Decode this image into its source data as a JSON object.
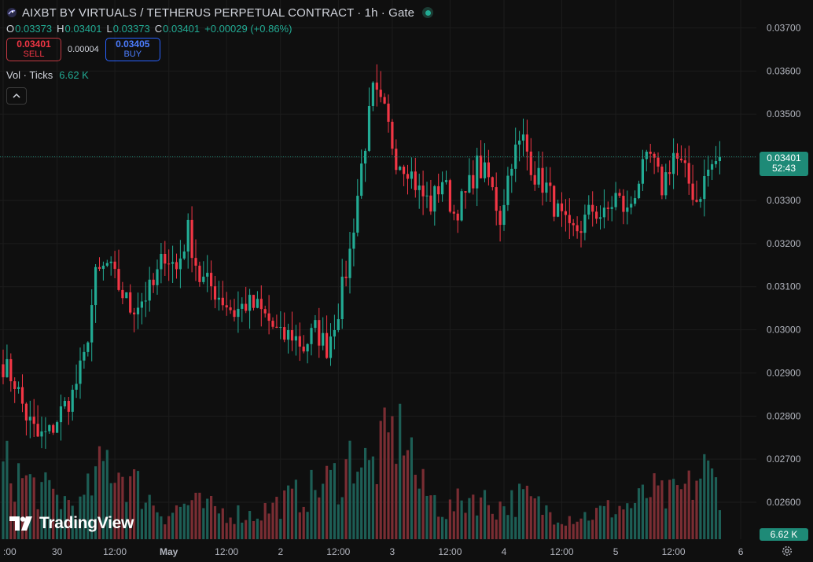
{
  "header": {
    "title": "AIXBT BY VIRTUALS / TETHERUS PERPETUAL CONTRACT · 1h · Gate",
    "symbol_icon": "galaxy-icon",
    "status_icon": "market-open-dot"
  },
  "ohlc": {
    "o_label": "O",
    "o": "0.03373",
    "h_label": "H",
    "h": "0.03401",
    "l_label": "L",
    "l": "0.03373",
    "c_label": "C",
    "c": "0.03401",
    "change": "+0.00029 (+0.86%)"
  },
  "trade": {
    "sell_price": "0.03401",
    "sell_label": "SELL",
    "spread": "0.00004",
    "buy_price": "0.03405",
    "buy_label": "BUY"
  },
  "volume_legend": {
    "label": "Vol · Ticks",
    "value": "6.62 K"
  },
  "price_axis": {
    "last_price": "0.03401",
    "countdown": "52:43",
    "volume_tag": "6.62 K"
  },
  "watermark": "TradingView",
  "colors": {
    "up": "#22ab94",
    "down": "#f23645",
    "background": "#0f0f0f",
    "grid": "#1c1c1c"
  },
  "chart_data": {
    "type": "candlestick",
    "timeframe": "1h",
    "ylim": [
      0.0256,
      0.0371
    ],
    "y_ticks": [
      "0.03700",
      "0.03600",
      "0.03500",
      "0.03400",
      "0.03300",
      "0.03200",
      "0.03100",
      "0.03000",
      "0.02900",
      "0.02800",
      "0.02700",
      "0.02600"
    ],
    "x_ticks": [
      ":00",
      "30",
      "12:00",
      "May",
      "12:00",
      "2",
      "12:00",
      "3",
      "12:00",
      "4",
      "12:00",
      "5",
      "12:00",
      "6"
    ],
    "last_price": 0.03401,
    "keyframes_close": [
      [
        0,
        0.0292
      ],
      [
        3,
        0.0288
      ],
      [
        6,
        0.028
      ],
      [
        9,
        0.0275
      ],
      [
        12,
        0.0276
      ],
      [
        15,
        0.0281
      ],
      [
        18,
        0.0285
      ],
      [
        21,
        0.0293
      ],
      [
        24,
        0.0312
      ],
      [
        27,
        0.0315
      ],
      [
        30,
        0.031
      ],
      [
        33,
        0.0305
      ],
      [
        36,
        0.0307
      ],
      [
        39,
        0.031
      ],
      [
        42,
        0.0318
      ],
      [
        45,
        0.0314
      ],
      [
        48,
        0.0323
      ],
      [
        51,
        0.0312
      ],
      [
        54,
        0.031
      ],
      [
        57,
        0.0307
      ],
      [
        60,
        0.0304
      ],
      [
        63,
        0.0306
      ],
      [
        66,
        0.0305
      ],
      [
        69,
        0.0302
      ],
      [
        72,
        0.0298
      ],
      [
        75,
        0.0299
      ],
      [
        78,
        0.0296
      ],
      [
        81,
        0.03
      ],
      [
        84,
        0.0296
      ],
      [
        87,
        0.0305
      ],
      [
        90,
        0.0318
      ],
      [
        93,
        0.0338
      ],
      [
        96,
        0.0355
      ],
      [
        99,
        0.035
      ],
      [
        102,
        0.034
      ],
      [
        105,
        0.0338
      ],
      [
        108,
        0.0332
      ],
      [
        111,
        0.0329
      ],
      [
        114,
        0.0335
      ],
      [
        117,
        0.0327
      ],
      [
        120,
        0.0331
      ],
      [
        123,
        0.0338
      ],
      [
        126,
        0.0335
      ],
      [
        129,
        0.0326
      ],
      [
        132,
        0.034
      ],
      [
        135,
        0.0344
      ],
      [
        138,
        0.0336
      ],
      [
        141,
        0.0333
      ],
      [
        144,
        0.0327
      ],
      [
        147,
        0.0322
      ],
      [
        150,
        0.0324
      ],
      [
        153,
        0.0328
      ],
      [
        156,
        0.0326
      ],
      [
        159,
        0.0331
      ],
      [
        162,
        0.0327
      ],
      [
        165,
        0.0335
      ],
      [
        168,
        0.034
      ],
      [
        171,
        0.0333
      ],
      [
        174,
        0.0341
      ],
      [
        177,
        0.0336
      ],
      [
        180,
        0.033
      ],
      [
        183,
        0.0337
      ],
      [
        186,
        0.03401
      ]
    ],
    "volume": {
      "max_visible": 17000,
      "keyframes": [
        [
          0,
          9000
        ],
        [
          10,
          6000
        ],
        [
          20,
          4000
        ],
        [
          27,
          10000
        ],
        [
          35,
          6500
        ],
        [
          42,
          3000
        ],
        [
          48,
          4500
        ],
        [
          56,
          3500
        ],
        [
          65,
          3000
        ],
        [
          72,
          4500
        ],
        [
          80,
          6000
        ],
        [
          88,
          8000
        ],
        [
          91,
          11000
        ],
        [
          95,
          8500
        ],
        [
          100,
          12000
        ],
        [
          104,
          15000
        ],
        [
          108,
          6500
        ],
        [
          115,
          3500
        ],
        [
          122,
          5500
        ],
        [
          128,
          4000
        ],
        [
          135,
          5200
        ],
        [
          140,
          3800
        ],
        [
          146,
          2800
        ],
        [
          152,
          3000
        ],
        [
          158,
          3800
        ],
        [
          164,
          4300
        ],
        [
          168,
          6000
        ],
        [
          172,
          5000
        ],
        [
          178,
          6300
        ],
        [
          182,
          8500
        ],
        [
          187,
          6000
        ]
      ]
    }
  }
}
